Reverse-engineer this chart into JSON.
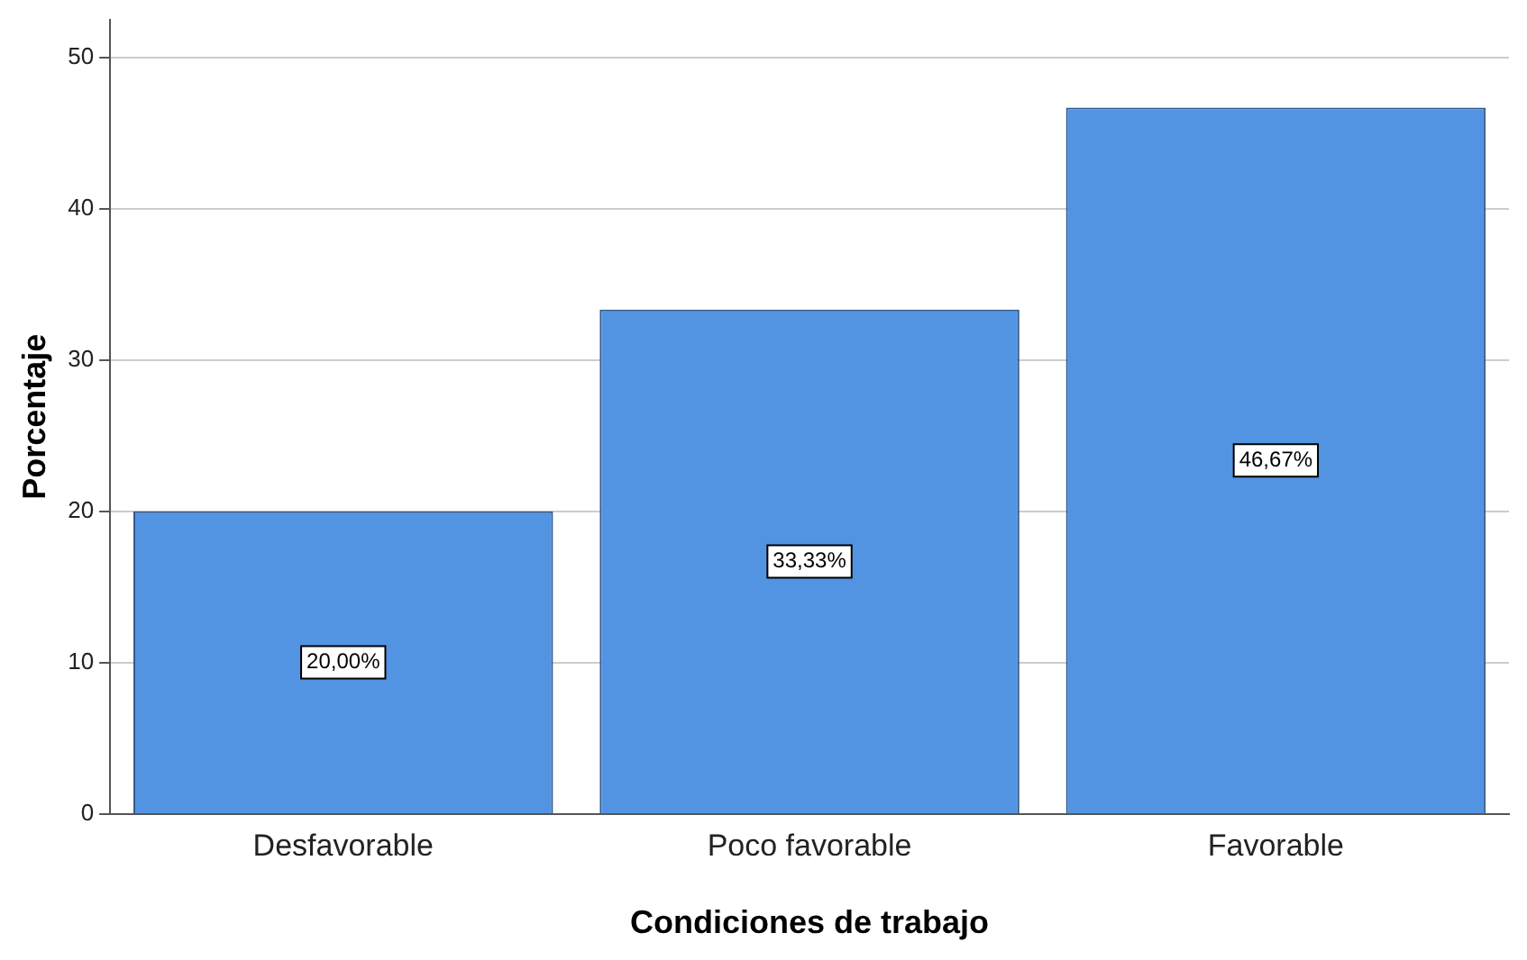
{
  "chart_data": {
    "type": "bar",
    "xlabel": "Condiciones de trabajo",
    "ylabel": "Porcentaje",
    "categories": [
      "Desfavorable",
      "Poco favorable",
      "Favorable"
    ],
    "values": [
      20,
      33.33,
      46.67
    ],
    "color": "#5294e2",
    "value_labels": [
      "20,00%",
      "33,33%",
      "46,67%"
    ],
    "ylim": [
      0,
      52.5
    ],
    "yticks": [
      0,
      10,
      20,
      30,
      40,
      50
    ],
    "grid": "y",
    "legend": false
  }
}
